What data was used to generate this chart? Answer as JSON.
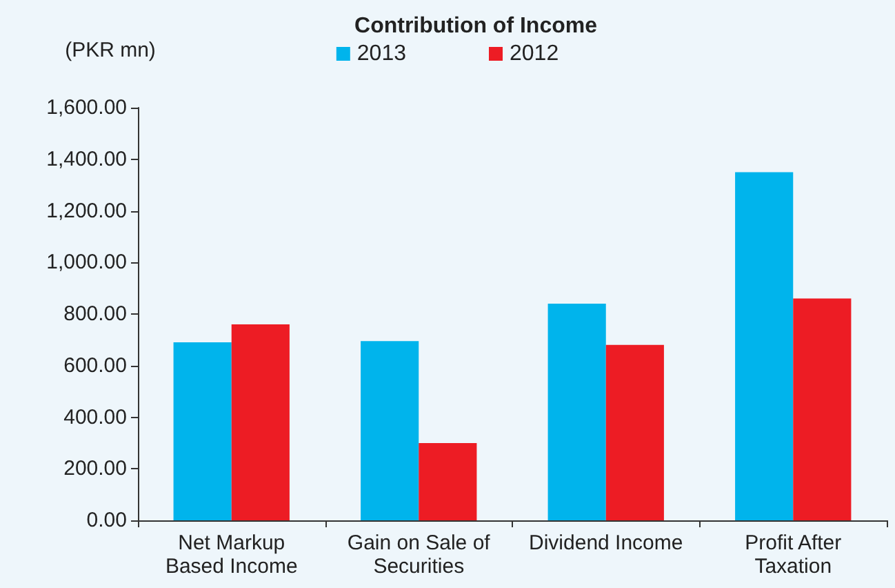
{
  "chart_data": {
    "type": "bar",
    "title": "Contribution of Income",
    "ylabel": "(PKR mn)",
    "categories": [
      "Net Markup\nBased Income",
      "Gain on Sale of\nSecurities",
      "Dividend Income",
      "Profit After\nTaxation"
    ],
    "series": [
      {
        "name": "2013",
        "color": "#00b4ec",
        "values": [
          690,
          695,
          840,
          1350
        ]
      },
      {
        "name": "2012",
        "color": "#ed1c24",
        "values": [
          760,
          300,
          680,
          860
        ]
      }
    ],
    "ylim": [
      0,
      1600
    ],
    "yticks": [
      {
        "value": 0,
        "label": "0.00"
      },
      {
        "value": 200,
        "label": "200.00"
      },
      {
        "value": 400,
        "label": "400.00"
      },
      {
        "value": 600,
        "label": "600.00"
      },
      {
        "value": 800,
        "label": "800.00"
      },
      {
        "value": 1000,
        "label": "1,000.00"
      },
      {
        "value": 1200,
        "label": "1,200.00"
      },
      {
        "value": 1400,
        "label": "1,400.00"
      },
      {
        "value": 1600,
        "label": "1,600.00"
      }
    ],
    "grid": false,
    "legend": "top"
  }
}
